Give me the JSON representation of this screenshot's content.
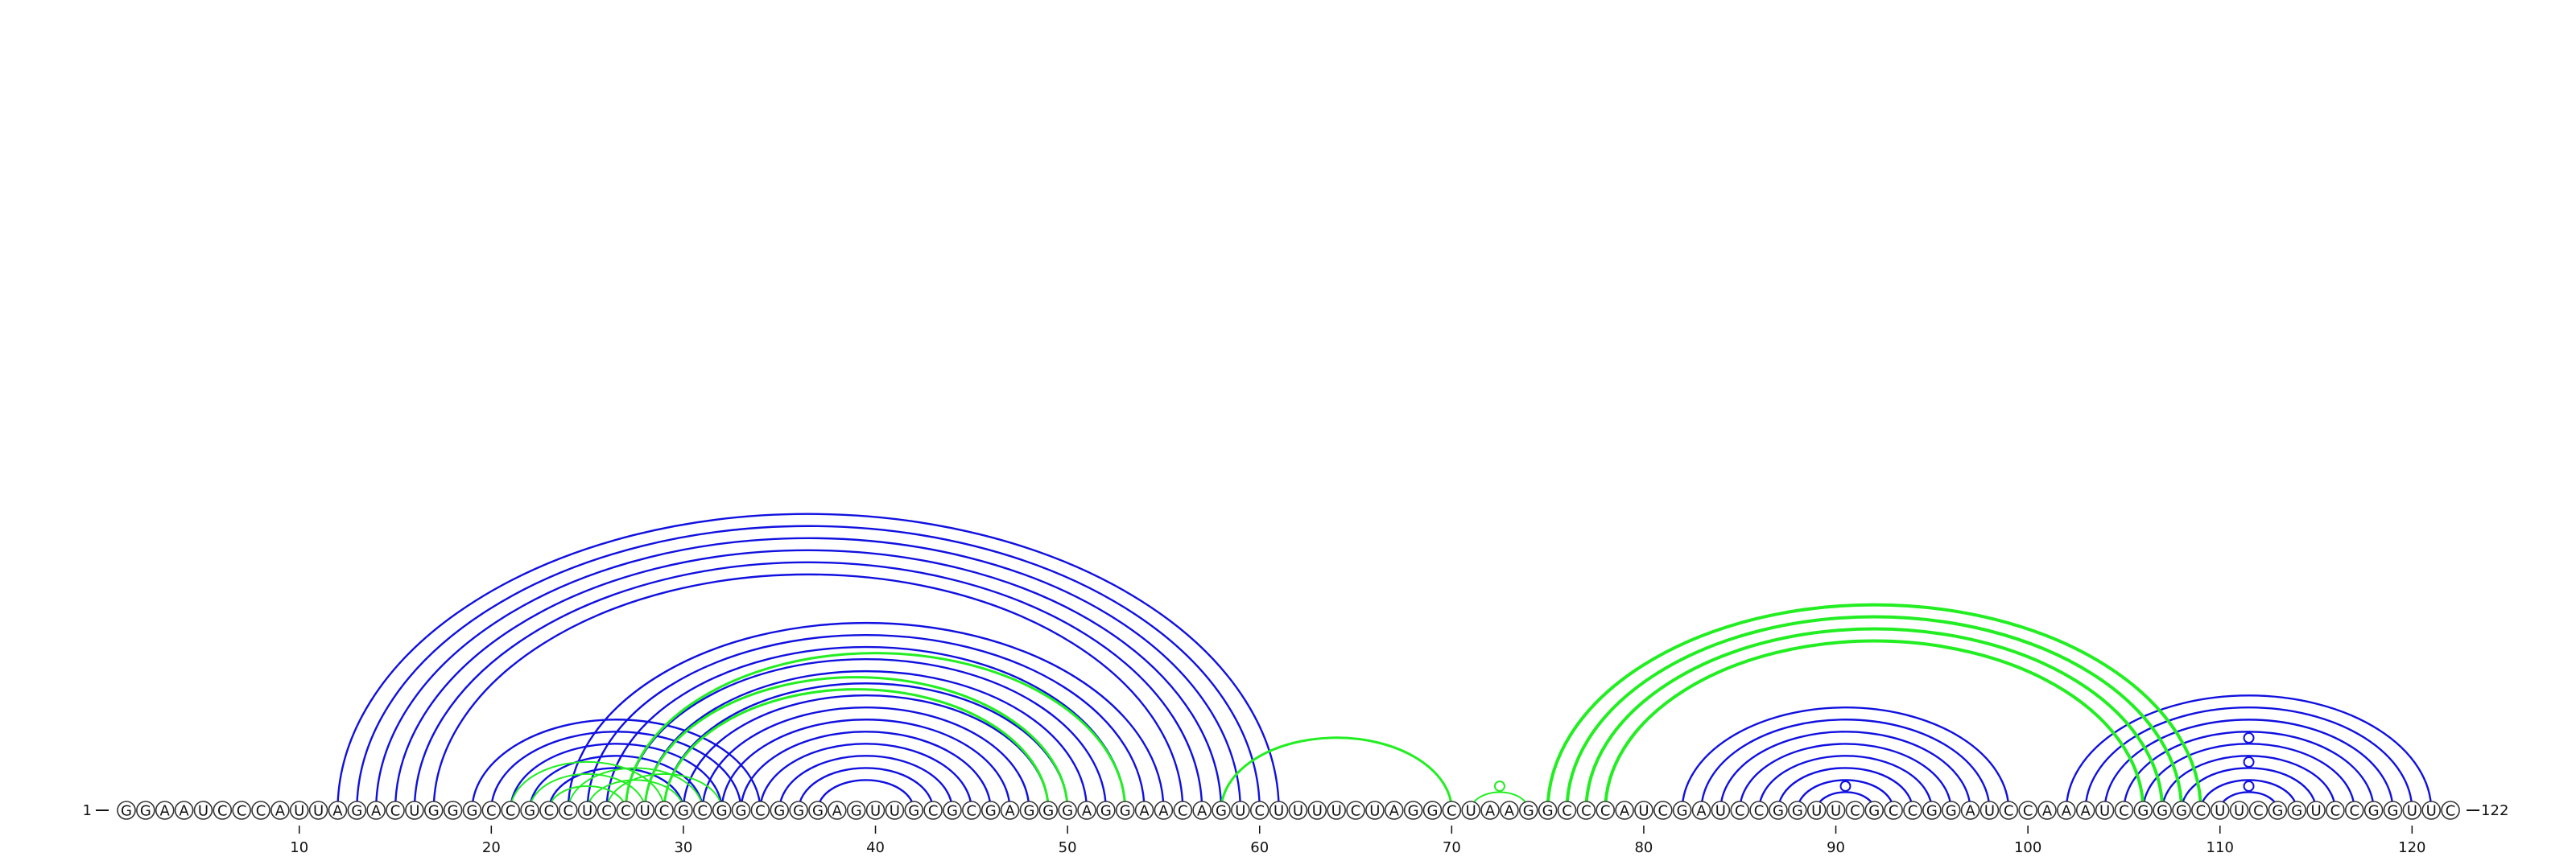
{
  "diagram": {
    "start_label": "1",
    "end_label": "122",
    "sequence": "GGAAUCCCAUUAGACUGGGCCGCCUCCUCGCGGCGGGAGUUGCGCGAGGGAGGAACAGUCUUUUCUAGGCUAAGGCCCAUCGAUCCGGUUCGCCGGAUCCAAAUCGGGCUUCGGUCCGGUUC",
    "tick_labels": [
      "10",
      "20",
      "30",
      "40",
      "50",
      "60",
      "70",
      "80",
      "90",
      "100",
      "110",
      "120"
    ],
    "colors": {
      "blue": "#1010e0",
      "green": "#22ee22",
      "outline": "#333333"
    },
    "blue_pairs": [
      [
        12,
        61
      ],
      [
        13,
        60
      ],
      [
        14,
        59
      ],
      [
        15,
        58
      ],
      [
        16,
        57
      ],
      [
        17,
        56
      ],
      [
        19,
        34
      ],
      [
        20,
        33
      ],
      [
        21,
        32
      ],
      [
        22,
        31
      ],
      [
        23,
        30
      ],
      [
        24,
        55
      ],
      [
        25,
        54
      ],
      [
        26,
        53
      ],
      [
        27,
        52
      ],
      [
        28,
        51
      ],
      [
        29,
        50
      ],
      [
        30,
        49
      ],
      [
        31,
        48
      ],
      [
        32,
        47
      ],
      [
        33,
        46
      ],
      [
        34,
        45
      ],
      [
        35,
        44
      ],
      [
        36,
        43
      ],
      [
        37,
        42
      ],
      [
        82,
        99
      ],
      [
        83,
        98
      ],
      [
        84,
        97
      ],
      [
        85,
        96
      ],
      [
        86,
        95
      ],
      [
        87,
        94
      ],
      [
        88,
        93
      ],
      [
        89,
        92
      ],
      [
        102,
        121
      ],
      [
        103,
        120
      ],
      [
        104,
        119
      ],
      [
        105,
        118
      ],
      [
        106,
        117
      ],
      [
        107,
        116
      ],
      [
        108,
        115
      ],
      [
        109,
        114
      ],
      [
        110,
        113
      ]
    ],
    "green_pairs": [
      [
        21,
        29
      ],
      [
        22,
        28
      ],
      [
        23,
        27
      ],
      [
        24,
        31
      ],
      [
        25,
        30
      ],
      [
        26,
        32
      ],
      [
        27,
        53
      ],
      [
        28,
        50
      ],
      [
        29,
        49
      ],
      [
        58,
        70
      ],
      [
        71,
        74
      ],
      [
        75,
        109
      ],
      [
        76,
        108
      ],
      [
        77,
        107
      ],
      [
        78,
        106
      ]
    ],
    "green_pair_strokes": [
      2,
      2,
      2,
      2,
      2,
      2,
      3,
      3,
      3,
      3,
      2,
      4,
      4,
      4,
      4
    ],
    "hairpin_dots": [
      {
        "pos": 90.5,
        "color": "blue",
        "level": 1
      },
      {
        "pos": 72.5,
        "color": "green",
        "level": 1
      },
      {
        "pos": 111.5,
        "color": "blue",
        "level": 1
      },
      {
        "pos": 111.5,
        "color": "blue",
        "level": 2
      },
      {
        "pos": 111.5,
        "color": "blue",
        "level": 3
      }
    ]
  }
}
